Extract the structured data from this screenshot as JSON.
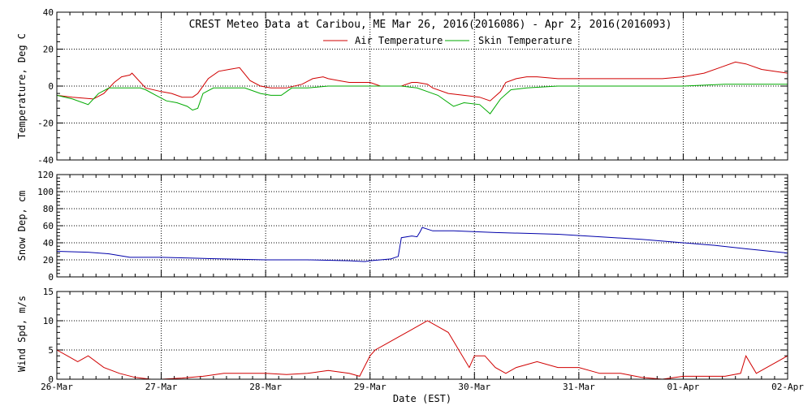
{
  "chart_data": [
    {
      "type": "line",
      "title": "CREST Meteo Data at Caribou, ME   Mar 26, 2016(2016086) - Apr  2, 2016(2016093)",
      "ylabel": "Temperature, Deg C",
      "ylim": [
        -40,
        40
      ],
      "yticks": [
        "-40",
        "-20",
        "0",
        "20",
        "40"
      ],
      "legend": [
        "Air Temperature",
        "Skin Temperature"
      ],
      "series": [
        {
          "name": "Air Temperature",
          "color": "#d00000",
          "x": [
            0,
            0.15,
            0.35,
            0.45,
            0.55,
            0.62,
            0.7,
            0.72,
            0.85,
            1.0,
            1.1,
            1.2,
            1.3,
            1.35,
            1.45,
            1.55,
            1.65,
            1.75,
            1.85,
            1.95,
            2.05,
            2.2,
            2.35,
            2.45,
            2.55,
            2.6,
            2.7,
            2.8,
            2.9,
            3.0,
            3.1,
            3.2,
            3.3,
            3.4,
            3.45,
            3.55,
            3.6,
            3.75,
            3.9,
            4.05,
            4.15,
            4.25,
            4.3,
            4.4,
            4.5,
            4.6,
            4.8,
            5.0,
            5.2,
            5.4,
            5.6,
            5.8,
            6.0,
            6.1,
            6.2,
            6.35,
            6.5,
            6.6,
            6.75,
            7.0
          ],
          "values": [
            -5,
            -6,
            -7,
            -4,
            2,
            5,
            6,
            7,
            -1,
            -3,
            -4,
            -6,
            -6,
            -4,
            4,
            8,
            9,
            10,
            3,
            0,
            -1,
            -1,
            1,
            4,
            5,
            4,
            3,
            2,
            2,
            2,
            0,
            0,
            0,
            2,
            2,
            1,
            -1,
            -4,
            -5,
            -6,
            -8,
            -3,
            2,
            4,
            5,
            5,
            4,
            4,
            4,
            4,
            4,
            4,
            5,
            6,
            7,
            10,
            13,
            12,
            9,
            7
          ]
        },
        {
          "name": "Skin Temperature",
          "color": "#00aa00",
          "x": [
            0,
            0.15,
            0.3,
            0.4,
            0.5,
            0.6,
            0.7,
            0.8,
            0.85,
            0.95,
            1.05,
            1.15,
            1.25,
            1.3,
            1.35,
            1.4,
            1.5,
            1.65,
            1.8,
            1.95,
            2.05,
            2.15,
            2.25,
            2.4,
            2.6,
            2.8,
            3.0,
            3.1,
            3.2,
            3.3,
            3.45,
            3.55,
            3.65,
            3.8,
            3.9,
            4.05,
            4.15,
            4.25,
            4.35,
            4.5,
            4.8,
            5.2,
            5.6,
            6.0,
            6.4,
            6.75,
            7.0
          ],
          "values": [
            -5,
            -7,
            -10,
            -4,
            -1,
            -1,
            -1,
            -1,
            -2,
            -5,
            -8,
            -9,
            -11,
            -13,
            -12,
            -4,
            -1,
            -1,
            -1,
            -4,
            -5,
            -5,
            -1,
            -1,
            0,
            0,
            0,
            0,
            0,
            0,
            -1,
            -3,
            -5,
            -11,
            -9,
            -10,
            -15,
            -7,
            -2,
            -1,
            0,
            0,
            0,
            0,
            1,
            1,
            1
          ]
        }
      ]
    },
    {
      "type": "line",
      "ylabel": "Snow Dep, cm",
      "ylim": [
        0,
        120
      ],
      "yticks": [
        "0",
        "20",
        "40",
        "60",
        "80",
        "100",
        "120"
      ],
      "series": [
        {
          "color": "#0000aa",
          "x": [
            0,
            0.3,
            0.5,
            0.7,
            1.0,
            1.3,
            1.6,
            2.0,
            2.4,
            2.8,
            2.95,
            3.0,
            3.2,
            3.27,
            3.3,
            3.4,
            3.45,
            3.48,
            3.5,
            3.55,
            3.6,
            3.8,
            4.2,
            4.5,
            4.8,
            5.2,
            5.6,
            6.0,
            6.3,
            6.6,
            7.0
          ],
          "values": [
            30,
            29,
            27,
            23,
            23,
            22,
            21,
            20,
            20,
            19,
            18,
            19,
            21,
            24,
            46,
            48,
            47,
            53,
            58,
            56,
            54,
            54,
            52,
            51,
            50,
            47,
            44,
            40,
            37,
            33,
            28
          ]
        }
      ]
    },
    {
      "type": "line",
      "ylabel": "Wind Spd, m/s",
      "ylim": [
        0,
        15
      ],
      "yticks": [
        "0",
        "5",
        "10",
        "15"
      ],
      "xlabel": "Date (EST)",
      "xlim": [
        0,
        7
      ],
      "xticks": [
        "26-Mar",
        "27-Mar",
        "28-Mar",
        "29-Mar",
        "30-Mar",
        "31-Mar",
        "01-Apr",
        "02-Apr"
      ],
      "series": [
        {
          "color": "#d00000",
          "x": [
            0,
            0.1,
            0.2,
            0.3,
            0.45,
            0.6,
            0.75,
            0.9,
            1.0,
            1.2,
            1.4,
            1.6,
            1.8,
            2.0,
            2.2,
            2.4,
            2.6,
            2.8,
            2.9,
            3.0,
            3.05,
            3.15,
            3.25,
            3.35,
            3.45,
            3.55,
            3.65,
            3.75,
            3.85,
            3.95,
            4.0,
            4.1,
            4.2,
            4.3,
            4.4,
            4.6,
            4.8,
            5.0,
            5.2,
            5.4,
            5.6,
            5.8,
            6.0,
            6.2,
            6.4,
            6.55,
            6.6,
            6.7,
            6.8,
            6.9,
            7.0
          ],
          "values": [
            5,
            4,
            3,
            4,
            2,
            1,
            0.3,
            0,
            0,
            0.2,
            0.5,
            1,
            1,
            1,
            0.8,
            1,
            1.5,
            1,
            0.5,
            4,
            5,
            6,
            7,
            8,
            9,
            10,
            9,
            8,
            5,
            2,
            4,
            4,
            2,
            1,
            2,
            3,
            2,
            2,
            1,
            1,
            0.3,
            0,
            0.5,
            0.5,
            0.5,
            1,
            4,
            1,
            2,
            3,
            4
          ]
        }
      ]
    }
  ]
}
